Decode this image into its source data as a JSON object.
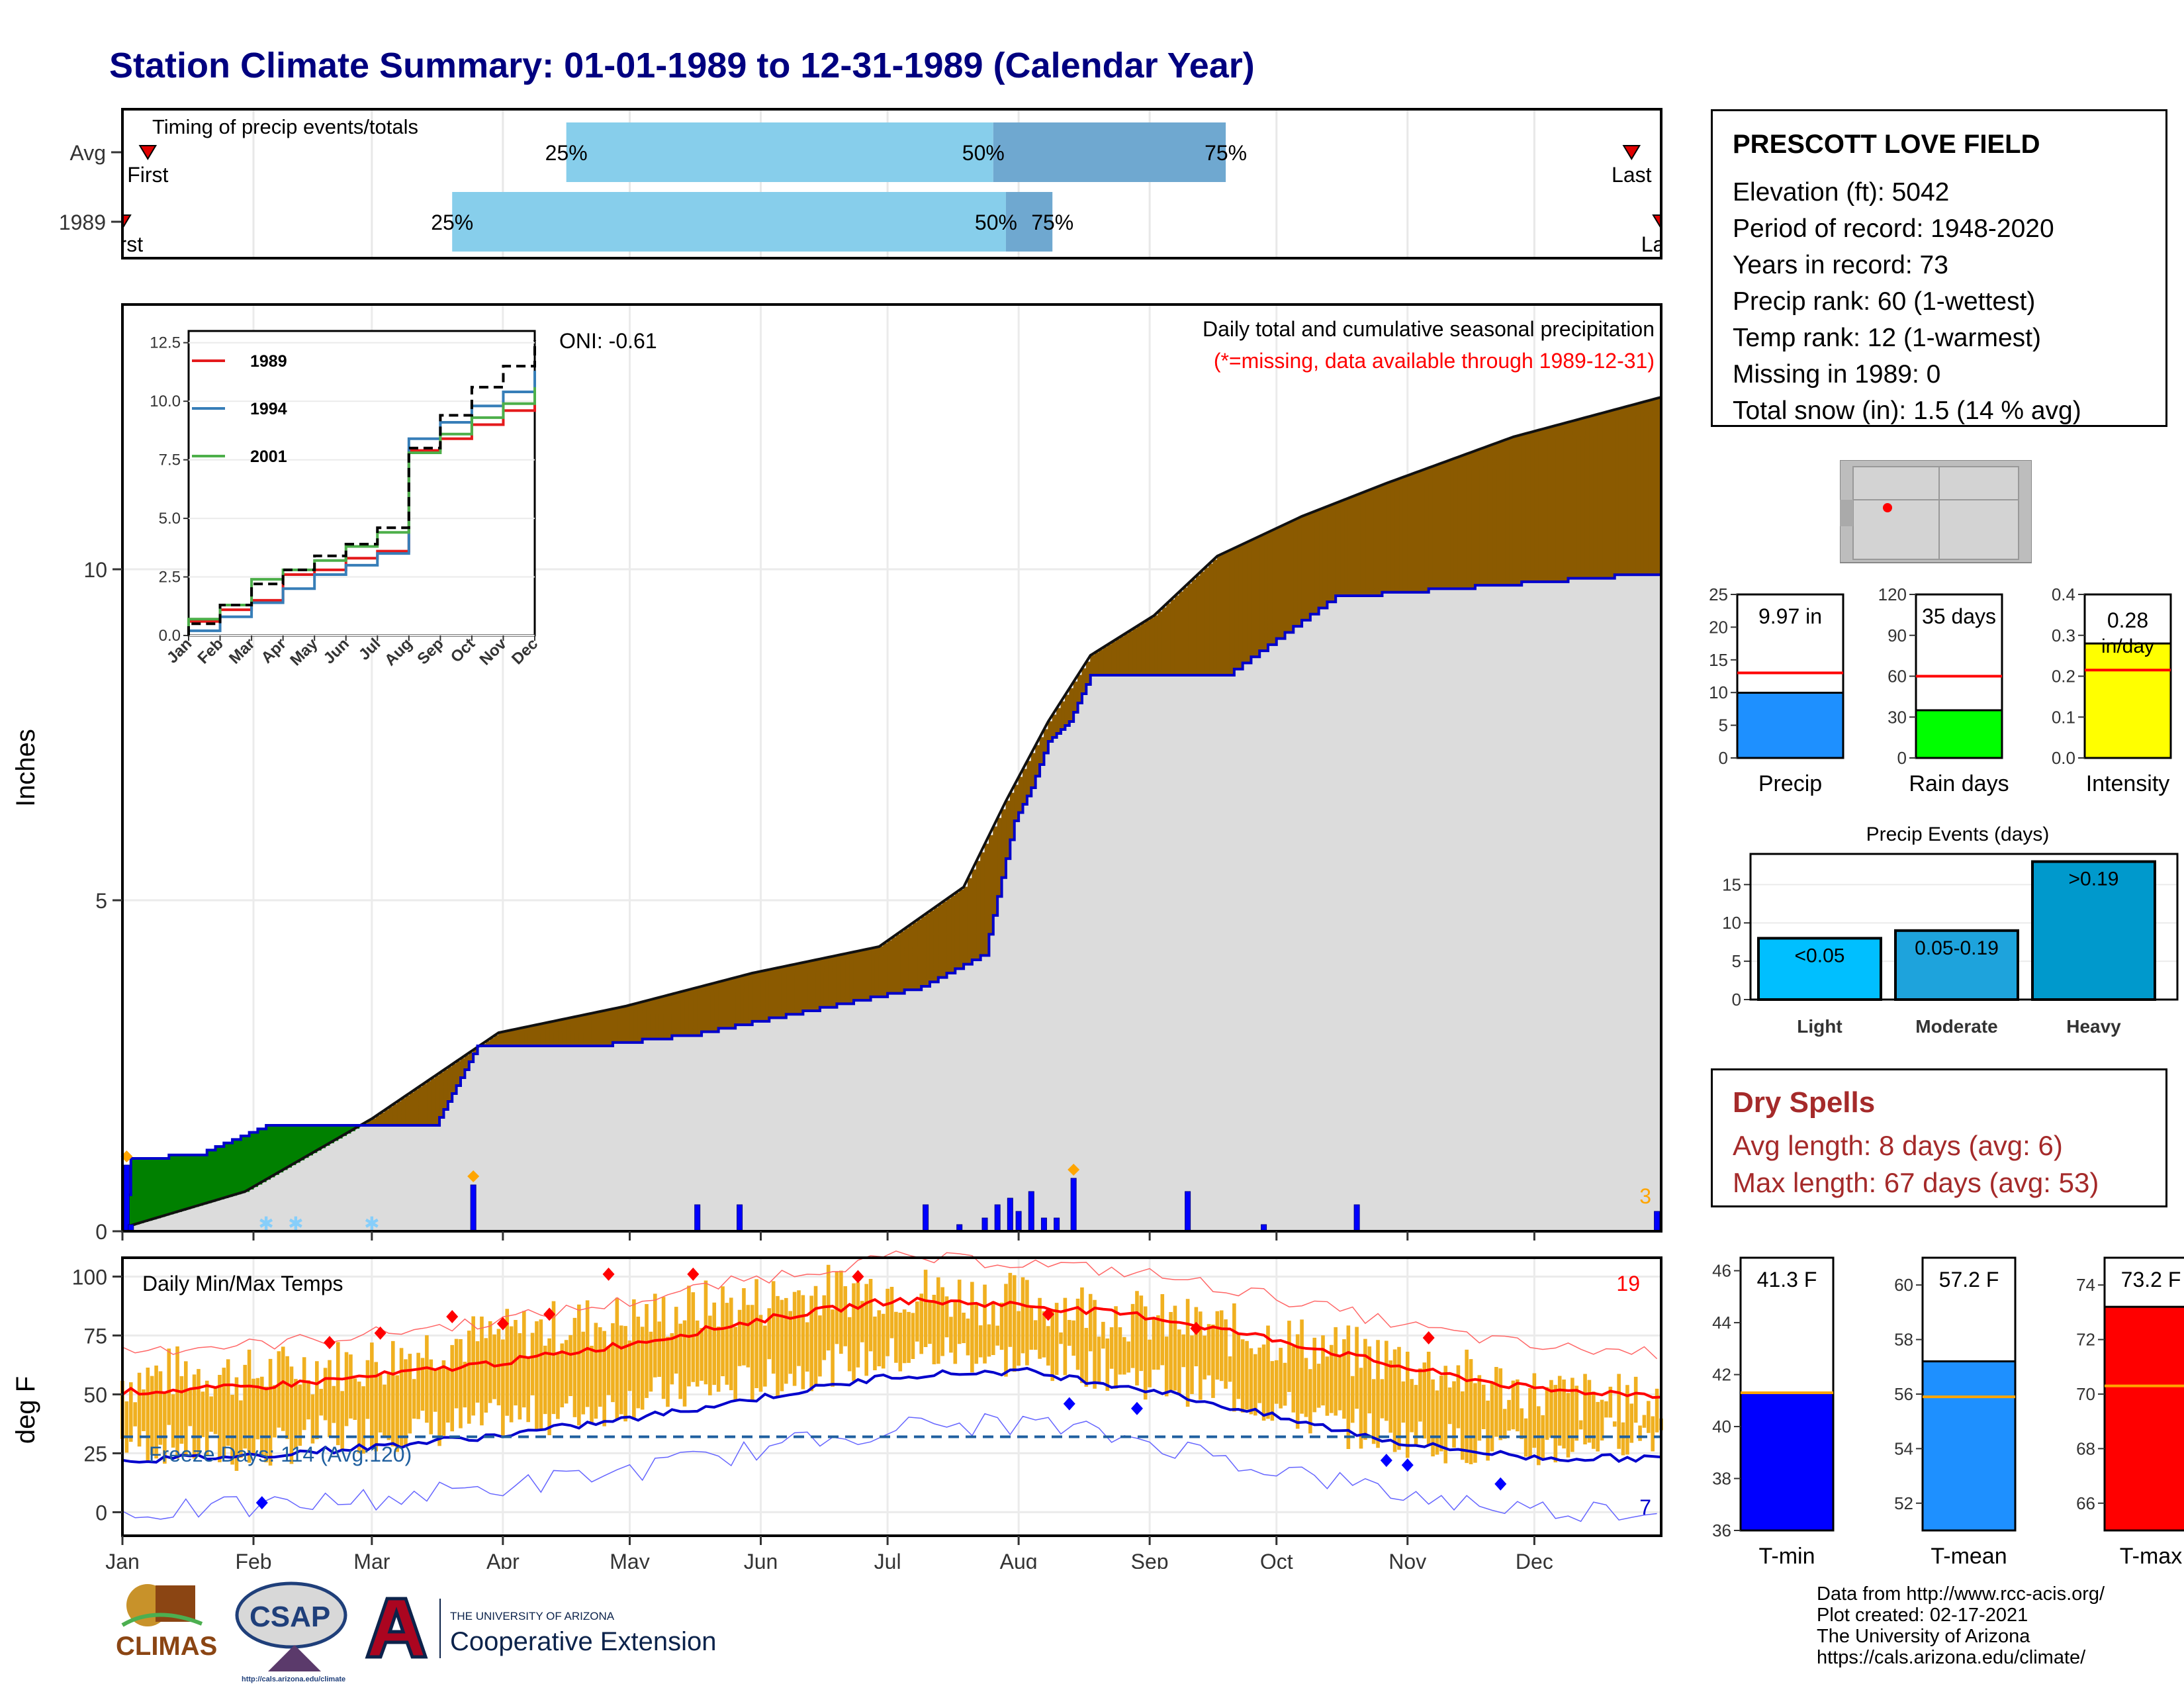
{
  "title": "Station Climate Summary: 01-01-1989 to 12-31-1989 (Calendar Year)",
  "colors": {
    "title": "#000080",
    "dry": "#a52a2a",
    "above": "#8b5a00",
    "below": "#008000",
    "cum_line": "#0000cc",
    "bars": "#0000ff",
    "temp_band": "#f0b020",
    "max_line": "#ff0000",
    "min_line": "#0000cc"
  },
  "timing_panel": {
    "label": "Timing of precip events/totals",
    "rows": [
      {
        "name": "Avg",
        "first_label": "First",
        "last_label": "Last",
        "p25_label": "25%",
        "p50_label": "50%",
        "p75_label": "75%",
        "first_day": 7,
        "p25_day": 106,
        "p50_day": 207,
        "p75_day": 262,
        "last_day": 358
      },
      {
        "name": "1989",
        "first_label": "First",
        "last_label": "Last",
        "p25_label": "25%",
        "p50_label": "50%",
        "p75_label": "75%",
        "first_day": 1,
        "p25_day": 79,
        "p50_day": 210,
        "p75_day": 221,
        "last_day": 365
      }
    ]
  },
  "station": {
    "name": "PRESCOTT LOVE FIELD",
    "lines": [
      "Elevation (ft): 5042",
      "Period of record: 1948-2020",
      "Years in record: 73",
      "Precip rank: 60 (1-wettest)",
      "Temp rank: 12 (1-warmest)",
      "Missing in 1989: 0",
      "Total snow (in): 1.5 (14 % avg)"
    ]
  },
  "chart_data": [
    {
      "id": "cumulative_precip",
      "type": "area",
      "ylabel": "Inches",
      "ylim": [
        0,
        14
      ],
      "yticks": [
        0,
        5,
        10
      ],
      "months": [
        "Jan",
        "Feb",
        "Mar",
        "Apr",
        "May",
        "Jun",
        "Jul",
        "Aug",
        "Sep",
        "Oct",
        "Nov",
        "Dec"
      ],
      "annotation_title": "Daily total and cumulative seasonal precipitation",
      "annotation_missing": "(*=missing, data available through 1989-12-31)",
      "oni": "ONI: -0.61",
      "corner_count": "3",
      "avg_cumulative": {
        "days": [
          1,
          30,
          60,
          90,
          120,
          150,
          180,
          200,
          210,
          220,
          230,
          245,
          260,
          280,
          300,
          330,
          365
        ],
        "values": [
          0.05,
          0.6,
          1.7,
          3.0,
          3.4,
          3.9,
          4.3,
          5.2,
          6.5,
          7.7,
          8.7,
          9.3,
          10.2,
          10.8,
          11.3,
          12.0,
          12.6
        ]
      },
      "obs_cumulative": {
        "days": [
          1,
          3,
          20,
          35,
          50,
          75,
          85,
          110,
          137,
          190,
          205,
          212,
          216,
          220,
          225,
          230,
          240,
          262,
          288,
          365
        ],
        "values": [
          0.0,
          1.1,
          1.2,
          1.6,
          1.6,
          1.6,
          2.8,
          2.8,
          3.0,
          3.7,
          4.2,
          6.2,
          6.7,
          7.4,
          7.7,
          8.4,
          8.4,
          8.4,
          9.6,
          9.97
        ]
      },
      "daily_bars": [
        {
          "day": 2,
          "in": 1.0
        },
        {
          "day": 3,
          "in": 0.1
        },
        {
          "day": 84,
          "in": 0.7
        },
        {
          "day": 137,
          "in": 0.4
        },
        {
          "day": 147,
          "in": 0.4
        },
        {
          "day": 191,
          "in": 0.4
        },
        {
          "day": 199,
          "in": 0.1
        },
        {
          "day": 205,
          "in": 0.2
        },
        {
          "day": 208,
          "in": 0.4
        },
        {
          "day": 211,
          "in": 0.5
        },
        {
          "day": 213,
          "in": 0.3
        },
        {
          "day": 216,
          "in": 0.6
        },
        {
          "day": 219,
          "in": 0.2
        },
        {
          "day": 222,
          "in": 0.2
        },
        {
          "day": 226,
          "in": 0.8
        },
        {
          "day": 253,
          "in": 0.6
        },
        {
          "day": 271,
          "in": 0.1
        },
        {
          "day": 293,
          "in": 0.4
        },
        {
          "day": 364,
          "in": 0.3
        }
      ],
      "inset": {
        "ylim": [
          0,
          13
        ],
        "yticks": [
          "0.0",
          "2.5",
          "5.0",
          "7.5",
          "10.0",
          "12.5"
        ],
        "xticks": [
          "Jan",
          "Feb",
          "Mar",
          "Apr",
          "May",
          "Jun",
          "Jul",
          "Aug",
          "Sep",
          "Oct",
          "Nov",
          "Dec"
        ],
        "series": [
          {
            "name": "1989",
            "color": "#e41a1c",
            "values": [
              0.6,
              1.1,
              1.5,
              2.6,
              2.8,
              3.3,
              3.6,
              7.9,
              8.4,
              9.0,
              9.6,
              9.97
            ]
          },
          {
            "name": "1994",
            "color": "#377eb8",
            "values": [
              0.2,
              0.8,
              1.4,
              2.0,
              2.6,
              3.0,
              3.5,
              8.4,
              9.1,
              9.8,
              10.4,
              11.3
            ]
          },
          {
            "name": "2001",
            "color": "#4daf4a",
            "values": [
              0.7,
              1.3,
              2.4,
              2.8,
              3.2,
              3.8,
              4.4,
              7.8,
              8.6,
              9.3,
              9.9,
              10.6
            ]
          },
          {
            "name": "",
            "color": "#000000",
            "dashed": true,
            "values": [
              0.5,
              1.3,
              2.2,
              2.8,
              3.4,
              3.9,
              4.6,
              8.0,
              9.4,
              10.6,
              11.5,
              12.6
            ]
          }
        ]
      }
    },
    {
      "id": "daily_temps",
      "type": "area",
      "ylabel": "deg F",
      "label": "Daily Min/Max Temps",
      "ylim": [
        -10,
        108
      ],
      "yticks": [
        0,
        25,
        50,
        75,
        100
      ],
      "freeze_label": "Freeze Days: 114 (Avg:120)",
      "freeze_line": 32,
      "count_top": "19",
      "count_bottom": "7",
      "avg_max": {
        "months": [
          1,
          2,
          3,
          4,
          5,
          6,
          7,
          8,
          9,
          10,
          11,
          12,
          12.9
        ],
        "values": [
          51,
          53,
          58,
          64,
          72,
          82,
          90,
          88,
          83,
          73,
          61,
          52,
          50
        ]
      },
      "avg_min": {
        "months": [
          1,
          2,
          3,
          4,
          5,
          6,
          7,
          8,
          9,
          10,
          11,
          12,
          12.9
        ],
        "values": [
          22,
          24,
          28,
          33,
          40,
          49,
          58,
          60,
          52,
          40,
          29,
          23,
          23
        ]
      },
      "obs_max": {
        "months": [
          1,
          1.5,
          2,
          2.5,
          3,
          3.5,
          4,
          4.5,
          5,
          5.5,
          6,
          6.5,
          7,
          7.5,
          8,
          8.5,
          9,
          9.5,
          10,
          10.5,
          11,
          11.5,
          12,
          12.5,
          12.9
        ],
        "values": [
          56,
          60,
          58,
          62,
          64,
          72,
          75,
          80,
          82,
          87,
          90,
          94,
          95,
          92,
          90,
          87,
          82,
          78,
          74,
          68,
          64,
          57,
          50,
          48,
          46
        ]
      },
      "obs_min": {
        "months": [
          1,
          1.5,
          2,
          2.5,
          3,
          3.5,
          4,
          4.5,
          5,
          5.5,
          6,
          6.5,
          7,
          7.5,
          8,
          8.5,
          9,
          9.5,
          10,
          10.5,
          11,
          11.5,
          12,
          12.5,
          12.9
        ],
        "values": [
          24,
          22,
          18,
          26,
          28,
          30,
          34,
          36,
          42,
          46,
          50,
          56,
          60,
          62,
          58,
          56,
          50,
          46,
          38,
          30,
          26,
          22,
          20,
          26,
          28
        ]
      }
    },
    {
      "id": "precip_totals",
      "type": "bar",
      "categories": [
        "Precip",
        "Rain days",
        "Intensity"
      ],
      "values": [
        9.97,
        35,
        0.28
      ],
      "averages": [
        13.0,
        60,
        0.215
      ],
      "labels": [
        "9.97 in",
        "35 days",
        "0.28 in/day"
      ],
      "ylims": [
        [
          0,
          25
        ],
        [
          0,
          120
        ],
        [
          0,
          0.4
        ]
      ],
      "yticks": [
        [
          "0",
          "5",
          "10",
          "15",
          "20",
          "25"
        ],
        [
          "0",
          "30",
          "60",
          "90",
          "120"
        ],
        [
          "0.0",
          "0.1",
          "0.2",
          "0.3",
          "0.4"
        ]
      ],
      "colors": [
        "#1e90ff",
        "#00ff00",
        "#ffff00"
      ]
    },
    {
      "id": "precip_events",
      "type": "bar",
      "title": "Precip Events (days)",
      "categories": [
        "Light",
        "Moderate",
        "Heavy"
      ],
      "bin_labels": [
        "<0.05",
        "0.05-0.19",
        ">0.19"
      ],
      "values": [
        8,
        9,
        18
      ],
      "ylim": [
        0,
        19
      ],
      "yticks": [
        0,
        5,
        10,
        15
      ],
      "colors": [
        "#00bfff",
        "#1ea3dc",
        "#0099cc"
      ]
    },
    {
      "id": "temp_summary",
      "type": "bar",
      "categories": [
        "T-min",
        "T-mean",
        "T-max"
      ],
      "values": [
        41.3,
        57.2,
        73.2
      ],
      "averages": [
        41.3,
        55.9,
        70.3
      ],
      "labels": [
        "41.3 F",
        "57.2 F",
        "73.2 F"
      ],
      "ylims": [
        [
          36,
          46.5
        ],
        [
          51,
          61
        ],
        [
          65,
          75
        ]
      ],
      "yticks": [
        [
          "36",
          "38",
          "40",
          "42",
          "44",
          "46"
        ],
        [
          "52",
          "54",
          "56",
          "58",
          "60"
        ],
        [
          "66",
          "68",
          "70",
          "72",
          "74"
        ]
      ],
      "colors": [
        "#0000ff",
        "#1e90ff",
        "#ff0000"
      ]
    }
  ],
  "dry_spells": {
    "title": "Dry Spells",
    "avg": "Avg length: 8 days (avg: 6)",
    "max": "Max length: 67 days (avg: 53)"
  },
  "credits": [
    "Data from http://www.rcc-acis.org/",
    "Plot created: 02-17-2021",
    "The University of Arizona",
    "https://cals.arizona.edu/climate/"
  ],
  "logos": {
    "climas": "CLIMAS",
    "csap": "CSAP",
    "csap_url": "http://cals.arizona.edu/climate",
    "ua_small": "THE UNIVERSITY OF ARIZONA",
    "ua_big": "Cooperative Extension"
  }
}
